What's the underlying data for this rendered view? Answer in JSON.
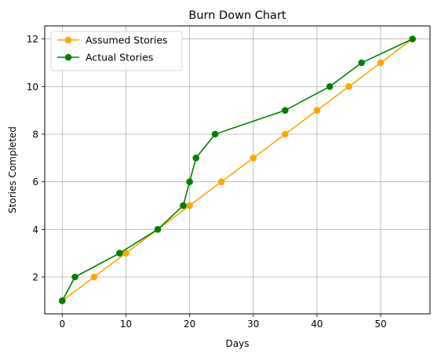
{
  "chart_data": {
    "type": "line",
    "title": "Burn Down Chart",
    "xlabel": "Days",
    "ylabel": "Stories Completed",
    "xlim": [
      -2.75,
      57.75
    ],
    "ylim": [
      0.45,
      12.55
    ],
    "xticks": [
      0,
      10,
      20,
      30,
      40,
      50
    ],
    "yticks": [
      2,
      4,
      6,
      8,
      10,
      12
    ],
    "grid": true,
    "legend_position": "top-left",
    "series": [
      {
        "name": "Assumed Stories",
        "color": "#ffa500",
        "marker": "circle",
        "x": [
          0,
          5,
          10,
          15,
          20,
          25,
          30,
          35,
          40,
          45,
          50,
          55
        ],
        "y": [
          1,
          2,
          3,
          4,
          5,
          6,
          7,
          8,
          9,
          10,
          11,
          12
        ]
      },
      {
        "name": "Actual Stories",
        "color": "#008000",
        "marker": "circle",
        "x": [
          0,
          2,
          9,
          15,
          19,
          20,
          21,
          24,
          35,
          42,
          47,
          55
        ],
        "y": [
          1,
          2,
          3,
          4,
          5,
          6,
          7,
          8,
          9,
          10,
          11,
          12
        ]
      }
    ]
  }
}
